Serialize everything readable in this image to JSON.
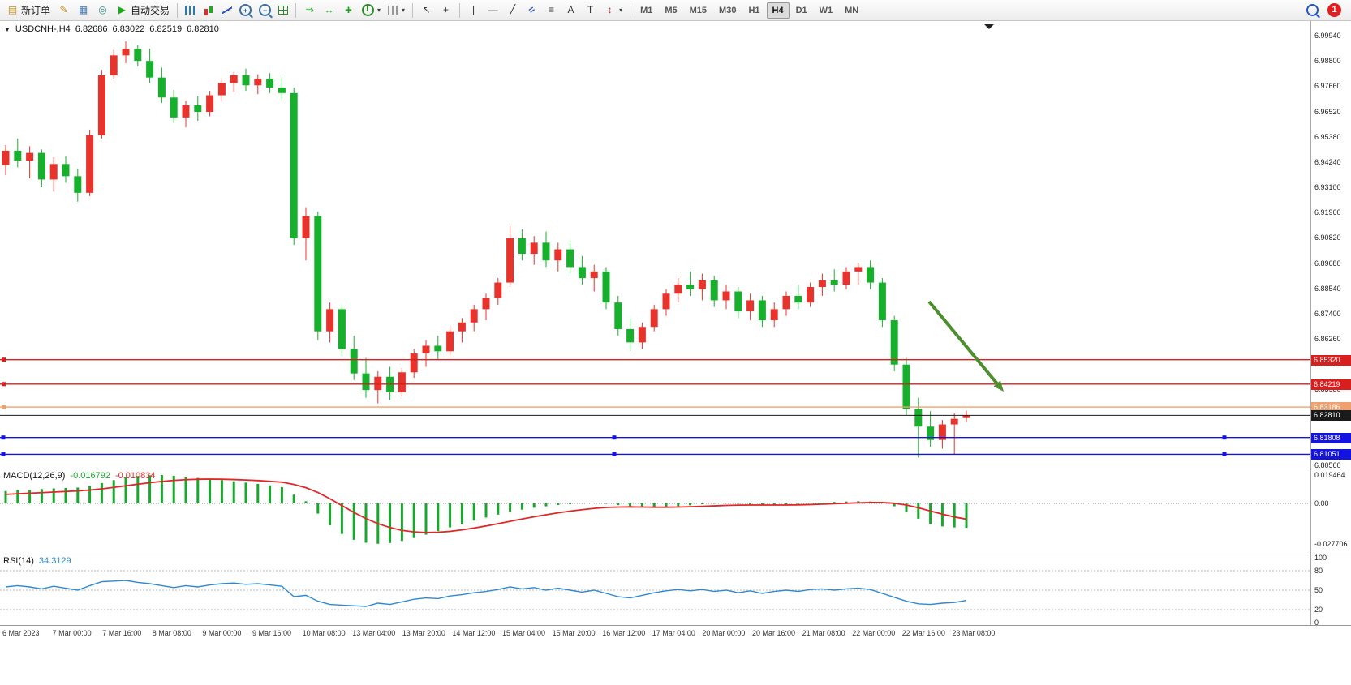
{
  "toolbar": {
    "new_order": "新订单",
    "autotrading": "自动交易",
    "timeframes": [
      "M1",
      "M5",
      "M15",
      "M30",
      "H1",
      "H4",
      "D1",
      "W1",
      "MN"
    ],
    "active_timeframe": "H4",
    "notification_count": "1",
    "items": [
      {
        "k": "btn",
        "name": "new-order",
        "label": "新订单",
        "g": "▤",
        "cls": "c-gold"
      },
      {
        "k": "btn",
        "name": "metaeditor",
        "g": "✎",
        "cls": "c-gold"
      },
      {
        "k": "btn",
        "name": "market-watch",
        "g": "▦",
        "cls": "c-blue"
      },
      {
        "k": "btn",
        "name": "navigator",
        "g": "◎",
        "cls": "c-teal"
      },
      {
        "k": "btn",
        "name": "autotrading",
        "label": "自动交易",
        "g": "▶",
        "cls": "c-green"
      },
      {
        "k": "sep"
      },
      {
        "k": "btn",
        "name": "bar-chart",
        "cls": "ico-bars"
      },
      {
        "k": "btn",
        "name": "candlestick-chart",
        "cls": "ico-candles"
      },
      {
        "k": "btn",
        "name": "line-chart",
        "cls": "ico-linechart"
      },
      {
        "k": "btn",
        "name": "zoom-in",
        "g": "+",
        "cls": "ico-zoom"
      },
      {
        "k": "btn",
        "name": "zoom-out",
        "g": "−",
        "cls": "ico-zoom"
      },
      {
        "k": "btn",
        "name": "tile-windows",
        "cls": "ico-grid"
      },
      {
        "k": "sep"
      },
      {
        "k": "btn",
        "name": "auto-scroll",
        "g": "⇒",
        "cls": "c-green"
      },
      {
        "k": "btn",
        "name": "chart-shift",
        "g": "↔",
        "cls": "c-green"
      },
      {
        "k": "btn",
        "name": "indicators",
        "g": "+",
        "cls": "ico-ind"
      },
      {
        "k": "btn",
        "name": "periods",
        "cls": "ico-clock",
        "caret": true
      },
      {
        "k": "btn",
        "name": "templates",
        "cls": "ico-template",
        "caret": true
      },
      {
        "k": "sep"
      },
      {
        "k": "btn",
        "name": "cursor",
        "g": "↖",
        "cls": "c-dark"
      },
      {
        "k": "btn",
        "name": "crosshair",
        "g": "+",
        "cls": "c-dark"
      },
      {
        "k": "sep"
      },
      {
        "k": "btn",
        "name": "vertical-line",
        "g": "|",
        "cls": "c-dark"
      },
      {
        "k": "btn",
        "name": "horizontal-line",
        "g": "—",
        "cls": "c-dark"
      },
      {
        "k": "btn",
        "name": "trendline",
        "g": "╱",
        "cls": "c-dark"
      },
      {
        "k": "btn",
        "name": "equidistant-channel",
        "g": "=",
        "cls": "ico-channel"
      },
      {
        "k": "btn",
        "name": "fibonacci-retracement",
        "g": "≡",
        "cls": "c-dark"
      },
      {
        "k": "btn",
        "name": "text",
        "g": "A",
        "cls": "c-dark"
      },
      {
        "k": "btn",
        "name": "text-label",
        "g": "T",
        "cls": "c-dark"
      },
      {
        "k": "btn",
        "name": "arrows",
        "g": "↕",
        "cls": "c-red",
        "caret": true
      },
      {
        "k": "sep"
      },
      {
        "k": "tf"
      },
      {
        "k": "spacer"
      },
      {
        "k": "btn",
        "name": "search",
        "cls": "ico-search"
      },
      {
        "k": "badge"
      }
    ]
  },
  "chart": {
    "symbol_period": "USDCNH-,H4",
    "ohlc": {
      "open": "6.82686",
      "high": "6.83022",
      "low": "6.82519",
      "close": "6.82810"
    }
  },
  "price_axis": {
    "labels": [
      "6.99940",
      "6.98800",
      "6.97660",
      "6.96520",
      "6.95380",
      "6.94240",
      "6.93100",
      "6.91960",
      "6.90820",
      "6.89680",
      "6.88540",
      "6.87400",
      "6.86260",
      "6.85120",
      "6.83980",
      "6.82840",
      "6.81700",
      "6.80560"
    ]
  },
  "price_lines": [
    {
      "label": "6.85320",
      "value": 6.8532,
      "color": "#d91e1e",
      "kind": "resistance-line"
    },
    {
      "label": "6.84219",
      "value": 6.84219,
      "color": "#d91e1e",
      "kind": "resistance-line"
    },
    {
      "label": "6.83186",
      "value": 6.83186,
      "color": "#efa070",
      "kind": "support-line"
    },
    {
      "label": "6.82810",
      "value": 6.8281,
      "color": "#1a1a1a",
      "kind": "current-price-line"
    },
    {
      "label": "6.81808",
      "value": 6.81808,
      "color": "#1414e0",
      "kind": "support-line",
      "handles": true
    },
    {
      "label": "6.81051",
      "value": 6.81051,
      "color": "#1414e0",
      "kind": "support-line",
      "handles": true
    }
  ],
  "time_axis": {
    "labels": [
      "6 Mar 2023",
      "7 Mar 00:00",
      "7 Mar 16:00",
      "8 Mar 08:00",
      "9 Mar 00:00",
      "9 Mar 16:00",
      "10 Mar 08:00",
      "13 Mar 04:00",
      "13 Mar 20:00",
      "14 Mar 12:00",
      "15 Mar 04:00",
      "15 Mar 20:00",
      "16 Mar 12:00",
      "17 Mar 04:00",
      "20 Mar 00:00",
      "20 Mar 16:00",
      "21 Mar 08:00",
      "22 Mar 00:00",
      "22 Mar 16:00",
      "23 Mar 08:00"
    ]
  },
  "indicators": {
    "macd": {
      "label": "MACD(12,26,9)",
      "main_value": "-0.016792",
      "signal_value": "-0.010834",
      "axis_labels": [
        {
          "t": "0.019464",
          "v": 0.019464
        },
        {
          "t": "0.00",
          "v": 0
        },
        {
          "t": "-0.027706",
          "v": -0.027706
        }
      ]
    },
    "rsi": {
      "label": "RSI(14)",
      "value": "34.3129",
      "levels": [
        80,
        50,
        20
      ],
      "axis_labels": [
        {
          "t": "100",
          "v": 100
        },
        {
          "t": "80",
          "v": 80
        },
        {
          "t": "50",
          "v": 50
        },
        {
          "t": "20",
          "v": 20
        },
        {
          "t": "0",
          "v": 0
        }
      ]
    }
  },
  "annotations": {
    "arrow": {
      "direction": "down-right",
      "color": "#4d8f2d"
    }
  },
  "chart_data": {
    "type": "candlestick",
    "symbol": "USDCNH",
    "timeframe": "H4",
    "ylim": [
      6.8059,
      6.9994
    ],
    "colors": {
      "bull": "#e8332c",
      "bear": "#17b02c",
      "macd": "#17a82c",
      "signal": "#e02828",
      "rsi": "#2f89d0"
    },
    "candles": [
      [
        6.941,
        6.95,
        6.9365,
        6.9475
      ],
      [
        6.9475,
        6.953,
        6.94,
        6.943
      ],
      [
        6.943,
        6.9495,
        6.935,
        6.9465
      ],
      [
        6.9465,
        6.948,
        6.931,
        6.9345
      ],
      [
        6.9345,
        6.9445,
        6.929,
        6.9415
      ],
      [
        6.9415,
        6.945,
        6.933,
        6.936
      ],
      [
        6.936,
        6.9395,
        6.9245,
        6.9285
      ],
      [
        6.9285,
        6.957,
        6.927,
        6.9545
      ],
      [
        6.9545,
        6.984,
        6.953,
        6.9815
      ],
      [
        6.9815,
        6.993,
        6.98,
        6.9905
      ],
      [
        6.9905,
        6.9968,
        6.987,
        6.9935
      ],
      [
        6.9935,
        6.995,
        6.9855,
        6.988
      ],
      [
        6.988,
        6.9935,
        6.978,
        6.9805
      ],
      [
        6.9805,
        6.985,
        6.969,
        6.9715
      ],
      [
        6.9715,
        6.975,
        6.96,
        6.9625
      ],
      [
        6.9625,
        6.97,
        6.958,
        6.968
      ],
      [
        6.968,
        6.972,
        6.961,
        6.965
      ],
      [
        6.965,
        6.9745,
        6.963,
        6.9725
      ],
      [
        6.9725,
        6.98,
        6.97,
        6.978
      ],
      [
        6.978,
        6.983,
        6.974,
        6.9815
      ],
      [
        6.9815,
        6.9845,
        6.9745,
        6.977
      ],
      [
        6.977,
        6.982,
        6.973,
        6.98
      ],
      [
        6.98,
        6.9825,
        6.9735,
        6.976
      ],
      [
        6.976,
        6.981,
        6.97,
        6.9735
      ],
      [
        6.9735,
        6.976,
        6.905,
        6.908
      ],
      [
        6.908,
        6.922,
        6.898,
        6.918
      ],
      [
        6.918,
        6.92,
        6.862,
        6.866
      ],
      [
        6.866,
        6.879,
        6.861,
        6.876
      ],
      [
        6.876,
        6.878,
        6.855,
        6.858
      ],
      [
        6.858,
        6.864,
        6.844,
        6.847
      ],
      [
        6.847,
        6.854,
        6.836,
        6.8395
      ],
      [
        6.8395,
        6.848,
        6.8335,
        6.8455
      ],
      [
        6.8455,
        6.85,
        6.835,
        6.8385
      ],
      [
        6.8385,
        6.8495,
        6.8365,
        6.8475
      ],
      [
        6.8475,
        6.858,
        6.845,
        6.856
      ],
      [
        6.856,
        6.862,
        6.85,
        6.8595
      ],
      [
        6.8595,
        6.864,
        6.853,
        6.857
      ],
      [
        6.857,
        6.868,
        6.855,
        6.866
      ],
      [
        6.866,
        6.872,
        6.861,
        6.87
      ],
      [
        6.87,
        6.878,
        6.866,
        6.876
      ],
      [
        6.876,
        6.883,
        6.871,
        6.881
      ],
      [
        6.881,
        6.89,
        6.878,
        6.888
      ],
      [
        6.888,
        6.9136,
        6.886,
        6.908
      ],
      [
        6.908,
        6.912,
        6.898,
        6.901
      ],
      [
        6.901,
        6.909,
        6.896,
        6.906
      ],
      [
        6.906,
        6.911,
        6.895,
        6.898
      ],
      [
        6.898,
        6.906,
        6.893,
        6.903
      ],
      [
        6.903,
        6.907,
        6.892,
        6.895
      ],
      [
        6.895,
        6.9,
        6.887,
        6.89
      ],
      [
        6.89,
        6.896,
        6.884,
        6.893
      ],
      [
        6.893,
        6.895,
        6.876,
        6.879
      ],
      [
        6.879,
        6.882,
        6.864,
        6.867
      ],
      [
        6.867,
        6.872,
        6.857,
        6.861
      ],
      [
        6.861,
        6.87,
        6.858,
        6.868
      ],
      [
        6.868,
        6.878,
        6.866,
        6.876
      ],
      [
        6.876,
        6.885,
        6.873,
        6.883
      ],
      [
        6.883,
        6.89,
        6.879,
        6.887
      ],
      [
        6.887,
        6.893,
        6.882,
        6.885
      ],
      [
        6.885,
        6.892,
        6.88,
        6.889
      ],
      [
        6.889,
        6.891,
        6.877,
        6.88
      ],
      [
        6.88,
        6.887,
        6.876,
        6.884
      ],
      [
        6.884,
        6.886,
        6.872,
        6.875
      ],
      [
        6.875,
        6.883,
        6.871,
        6.88
      ],
      [
        6.88,
        6.882,
        6.868,
        6.871
      ],
      [
        6.871,
        6.879,
        6.868,
        6.876
      ],
      [
        6.876,
        6.884,
        6.873,
        6.882
      ],
      [
        6.882,
        6.887,
        6.876,
        6.879
      ],
      [
        6.879,
        6.888,
        6.877,
        6.886
      ],
      [
        6.886,
        6.892,
        6.882,
        6.889
      ],
      [
        6.889,
        6.894,
        6.884,
        6.887
      ],
      [
        6.887,
        6.895,
        6.885,
        6.893
      ],
      [
        6.893,
        6.897,
        6.887,
        6.895
      ],
      [
        6.895,
        6.898,
        6.885,
        6.888
      ],
      [
        6.888,
        6.89,
        6.868,
        6.871
      ],
      [
        6.871,
        6.873,
        6.848,
        6.851
      ],
      [
        6.851,
        6.854,
        6.828,
        6.831
      ],
      [
        6.831,
        6.836,
        6.809,
        6.823
      ],
      [
        6.823,
        6.83,
        6.814,
        6.817
      ],
      [
        6.817,
        6.826,
        6.813,
        6.824
      ],
      [
        6.824,
        6.829,
        6.8105,
        6.8265
      ],
      [
        6.82686,
        6.83022,
        6.82519,
        6.8281
      ]
    ],
    "macd_main": [
      0.0085,
      0.009,
      0.0094,
      0.0099,
      0.0103,
      0.0106,
      0.0109,
      0.012,
      0.014,
      0.016,
      0.0178,
      0.0188,
      0.0193,
      0.0195,
      0.019,
      0.0183,
      0.0175,
      0.0168,
      0.016,
      0.0152,
      0.0143,
      0.0134,
      0.0124,
      0.0112,
      0.006,
      0.0015,
      -0.007,
      -0.015,
      -0.021,
      -0.025,
      -0.027,
      -0.0277,
      -0.0272,
      -0.0258,
      -0.0238,
      -0.0215,
      -0.019,
      -0.0165,
      -0.0141,
      -0.0118,
      -0.0097,
      -0.0077,
      -0.0058,
      -0.0043,
      -0.003,
      -0.002,
      -0.0011,
      -0.0005,
      -0.0001,
      0.0001,
      -0.0003,
      -0.0012,
      -0.0022,
      -0.0028,
      -0.0029,
      -0.0026,
      -0.002,
      -0.0013,
      -0.0006,
      -0.0002,
      -0.0001,
      -0.0003,
      -0.0006,
      -0.0009,
      -0.001,
      -0.0008,
      -0.0004,
      0.0001,
      0.0006,
      0.001,
      0.0013,
      0.0015,
      0.0013,
      0.0005,
      -0.002,
      -0.006,
      -0.0105,
      -0.014,
      -0.0158,
      -0.0165,
      -0.016792
    ],
    "macd_signal": [
      0.0062,
      0.0066,
      0.007,
      0.0074,
      0.0078,
      0.0082,
      0.0086,
      0.0092,
      0.01,
      0.011,
      0.0121,
      0.0132,
      0.0142,
      0.0151,
      0.0158,
      0.0163,
      0.0166,
      0.0167,
      0.0166,
      0.0164,
      0.0161,
      0.0157,
      0.0152,
      0.0146,
      0.013,
      0.0108,
      0.0075,
      0.0032,
      -0.0015,
      -0.0062,
      -0.0104,
      -0.0139,
      -0.0166,
      -0.0185,
      -0.0196,
      -0.02,
      -0.0198,
      -0.0192,
      -0.0182,
      -0.0169,
      -0.0155,
      -0.0139,
      -0.0123,
      -0.0107,
      -0.0092,
      -0.0078,
      -0.0065,
      -0.0053,
      -0.0043,
      -0.0034,
      -0.0028,
      -0.0025,
      -0.0024,
      -0.0025,
      -0.0026,
      -0.0026,
      -0.0025,
      -0.0023,
      -0.002,
      -0.0017,
      -0.0014,
      -0.0012,
      -0.0011,
      -0.0011,
      -0.0011,
      -0.0011,
      -0.001,
      -0.0008,
      -0.0005,
      -0.0002,
      0.0001,
      0.0004,
      0.0006,
      0.0006,
      0.0001,
      -0.0011,
      -0.003,
      -0.0052,
      -0.0074,
      -0.0093,
      -0.010834
    ],
    "rsi": [
      55,
      57,
      55,
      52,
      56,
      53,
      50,
      57,
      63,
      64,
      65,
      62,
      60,
      57,
      54,
      57,
      55,
      58,
      60,
      61,
      59,
      60,
      58,
      56,
      40,
      42,
      33,
      28,
      27,
      26,
      25,
      30,
      28,
      32,
      36,
      38,
      37,
      41,
      43,
      46,
      48,
      51,
      55,
      52,
      54,
      50,
      53,
      50,
      47,
      50,
      45,
      40,
      38,
      42,
      46,
      49,
      51,
      49,
      51,
      48,
      50,
      46,
      49,
      45,
      48,
      50,
      48,
      51,
      52,
      50,
      52,
      53,
      51,
      45,
      39,
      33,
      29,
      28,
      30,
      31,
      34.3129
    ]
  }
}
